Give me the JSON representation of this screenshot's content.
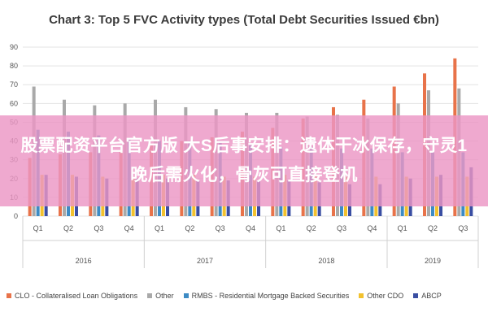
{
  "banner_text": "股票配资平台官方版 大S后事安排：遗体干冰保存，守灵1晚后需火化，骨灰可直接登机",
  "colors": {
    "clo": "#e8734a",
    "other": "#a9a9a9",
    "rmbs": "#3d8bc4",
    "other_cdo": "#f2c12e",
    "abcp": "#3a4ea2",
    "banner": "#ec96c4"
  },
  "chart_data": {
    "type": "bar",
    "title": "Chart 3: Top 5 FVC Activity types (Total Debt Securities Issued €bn)",
    "xlabel": "",
    "ylabel": "",
    "ylim": [
      0,
      90
    ],
    "yticks": [
      0,
      10,
      20,
      30,
      40,
      50,
      60,
      70,
      80,
      90
    ],
    "grid": true,
    "legend_position": "bottom",
    "categories": [
      "Q1",
      "Q2",
      "Q3",
      "Q4",
      "Q1",
      "Q2",
      "Q3",
      "Q4",
      "Q1",
      "Q2",
      "Q3",
      "Q4",
      "Q1",
      "Q2",
      "Q3"
    ],
    "year_groups": [
      {
        "label": "2016",
        "span": 4
      },
      {
        "label": "2017",
        "span": 4
      },
      {
        "label": "2018",
        "span": 4
      },
      {
        "label": "2019",
        "span": 3
      }
    ],
    "series": [
      {
        "name": "CLO - Collateralised Loan Obligations",
        "color_key": "clo",
        "values": [
          31,
          33,
          34,
          35,
          38,
          40,
          42,
          45,
          47,
          52,
          58,
          62,
          69,
          76,
          84
        ]
      },
      {
        "name": "Other",
        "color_key": "other",
        "values": [
          69,
          62,
          59,
          60,
          62,
          58,
          57,
          55,
          55,
          53,
          54,
          52,
          60,
          67,
          68
        ]
      },
      {
        "name": "RMBS - Residential Mortgage Backed Securities",
        "color_key": "rmbs",
        "values": [
          46,
          45,
          43,
          41,
          40,
          40,
          39,
          38,
          37,
          37,
          36,
          36,
          34,
          34,
          34
        ]
      },
      {
        "name": "Other CDO",
        "color_key": "other_cdo",
        "values": [
          22,
          22,
          21,
          21,
          22,
          22,
          21,
          21,
          22,
          22,
          21,
          21,
          21,
          21,
          21
        ]
      },
      {
        "name": "ABCP",
        "color_key": "abcp",
        "values": [
          22,
          21,
          20,
          20,
          20,
          19,
          19,
          19,
          19,
          18,
          17,
          17,
          20,
          22,
          26
        ]
      }
    ]
  }
}
